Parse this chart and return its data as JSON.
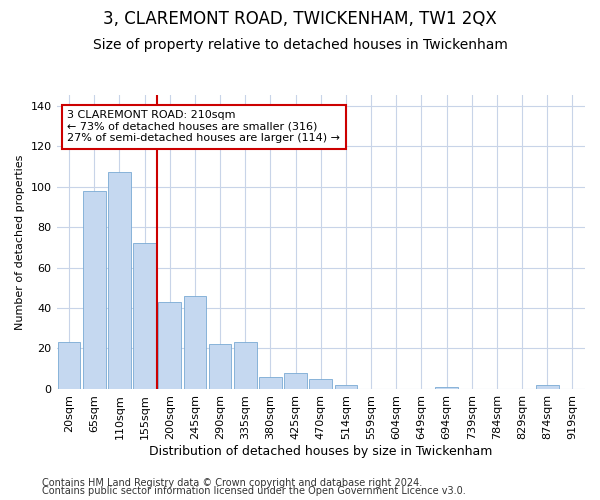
{
  "title": "3, CLAREMONT ROAD, TWICKENHAM, TW1 2QX",
  "subtitle": "Size of property relative to detached houses in Twickenham",
  "xlabel": "Distribution of detached houses by size in Twickenham",
  "ylabel": "Number of detached properties",
  "footnote1": "Contains HM Land Registry data © Crown copyright and database right 2024.",
  "footnote2": "Contains public sector information licensed under the Open Government Licence v3.0.",
  "bar_labels": [
    "20sqm",
    "65sqm",
    "110sqm",
    "155sqm",
    "200sqm",
    "245sqm",
    "290sqm",
    "335sqm",
    "380sqm",
    "425sqm",
    "470sqm",
    "514sqm",
    "559sqm",
    "604sqm",
    "649sqm",
    "694sqm",
    "739sqm",
    "784sqm",
    "829sqm",
    "874sqm",
    "919sqm"
  ],
  "bar_values": [
    23,
    98,
    107,
    72,
    43,
    46,
    22,
    23,
    6,
    8,
    5,
    2,
    0,
    0,
    0,
    1,
    0,
    0,
    0,
    2,
    0
  ],
  "bar_color": "#c5d8f0",
  "bar_edge_color": "#7aaad4",
  "grid_color": "#c8d4e8",
  "figure_background": "#ffffff",
  "plot_background": "#ffffff",
  "vline_x": 3.5,
  "vline_color": "#cc0000",
  "annotation_text": "3 CLAREMONT ROAD: 210sqm\n← 73% of detached houses are smaller (316)\n27% of semi-detached houses are larger (114) →",
  "annotation_box_facecolor": "#ffffff",
  "annotation_box_edgecolor": "#cc0000",
  "ylim": [
    0,
    145
  ],
  "yticks": [
    0,
    20,
    40,
    60,
    80,
    100,
    120,
    140
  ],
  "title_fontsize": 12,
  "subtitle_fontsize": 10,
  "xlabel_fontsize": 9,
  "ylabel_fontsize": 8,
  "tick_fontsize": 8,
  "annotation_fontsize": 8,
  "footnote_fontsize": 7
}
